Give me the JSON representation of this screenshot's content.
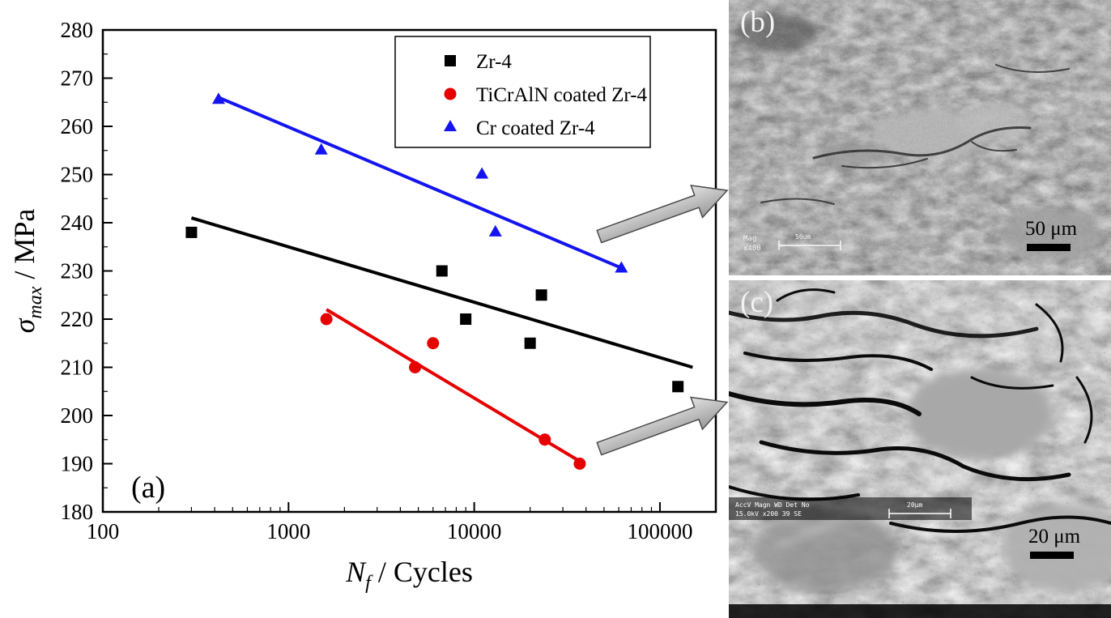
{
  "figure": {
    "panels": {
      "a": {
        "label": "(a)"
      },
      "b": {
        "label": "(b)",
        "scale_label": "50 μm",
        "footer": {
          "line1": "Mag",
          "line2": "x400",
          "bar_label": "50um"
        }
      },
      "c": {
        "label": "(c)",
        "scale_label": "20 μm",
        "footer": {
          "line1": "AccV     Magn    WD  Det  No",
          "line2": "15.0kV   x200    39  SE",
          "bar_label": "20μm"
        }
      }
    }
  },
  "chart_data": {
    "type": "scatter",
    "title": "",
    "x_scale": "log",
    "xlim": [
      100,
      200000
    ],
    "ylim": [
      180,
      280
    ],
    "y_major_step": 10,
    "y_minor_step": 5,
    "x_major_ticks": [
      100,
      1000,
      10000,
      100000
    ],
    "xlabel": "N_f / Cycles",
    "xlabel_parts": {
      "main": "N",
      "sub": "f",
      "rest": " / Cycles"
    },
    "ylabel": "sigma_max / MPa",
    "ylabel_parts": {
      "main": "σ",
      "sub": "max",
      "rest": " / MPa"
    },
    "panel_label": "(a)",
    "grid": false,
    "legend_position": "top-center-right",
    "series": [
      {
        "name": "Zr-4",
        "color": "#000000",
        "marker": "square",
        "points": [
          [
            300,
            238
          ],
          [
            6700,
            230
          ],
          [
            9000,
            220
          ],
          [
            20000,
            215
          ],
          [
            23000,
            225
          ],
          [
            125000,
            206
          ]
        ],
        "fit_line": [
          [
            300,
            241
          ],
          [
            150000,
            210
          ]
        ]
      },
      {
        "name": "TiCrAlN coated Zr-4",
        "color": "#e60000",
        "marker": "circle",
        "points": [
          [
            1600,
            220
          ],
          [
            4800,
            210
          ],
          [
            6000,
            215
          ],
          [
            24000,
            195
          ],
          [
            37000,
            190
          ]
        ],
        "fit_line": [
          [
            1600,
            222
          ],
          [
            37000,
            190.5
          ]
        ]
      },
      {
        "name": "Cr coated Zr-4",
        "color": "#1414f0",
        "marker": "triangle",
        "points": [
          [
            420,
            265.5
          ],
          [
            1500,
            255
          ],
          [
            11000,
            250
          ],
          [
            13000,
            238
          ],
          [
            62000,
            230.5
          ]
        ],
        "fit_line": [
          [
            420,
            266
          ],
          [
            63000,
            230.5
          ]
        ]
      }
    ]
  }
}
